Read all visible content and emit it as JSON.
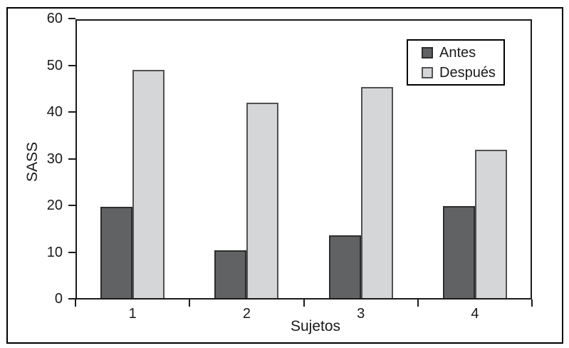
{
  "figure": {
    "background_color": "#ffffff",
    "frame_color": "#000000",
    "axis_color": "#1a1a1a",
    "text_color": "#1a1a1a"
  },
  "chart_data": {
    "type": "bar",
    "title": "",
    "xlabel": "Sujetos",
    "ylabel": "SASS",
    "categories": [
      "1",
      "2",
      "3",
      "4"
    ],
    "series": [
      {
        "name": "Antes",
        "color": "#616264",
        "border_color": "#2d2d2d",
        "values": [
          19.5,
          10.3,
          13.4,
          19.7
        ]
      },
      {
        "name": "Después",
        "color": "#d5d6d8",
        "border_color": "#515151",
        "values": [
          48.9,
          41.9,
          45.2,
          31.8
        ]
      }
    ],
    "ylim": [
      0,
      60
    ],
    "yticks": [
      0,
      10,
      20,
      30,
      40,
      50,
      60
    ],
    "grid": false,
    "legend_position": "top-right",
    "legend_labels": [
      "Antes",
      "Después"
    ]
  }
}
